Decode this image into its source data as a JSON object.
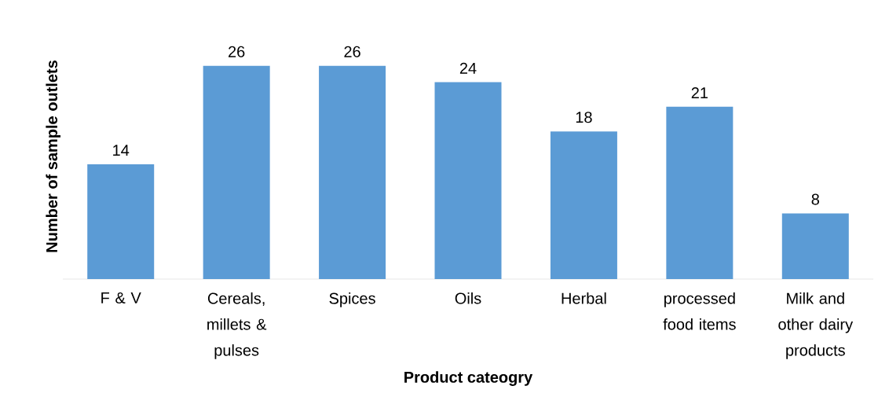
{
  "chart_data": {
    "type": "bar",
    "xlabel": "Product cateogry",
    "ylabel": "Number of sample outlets",
    "categories": [
      "F & V",
      "Cereals, millets & pulses",
      "Spices",
      "Oils",
      "Herbal",
      "processed food items",
      "Milk and other dairy products"
    ],
    "values": [
      14,
      26,
      26,
      24,
      18,
      21,
      8
    ],
    "color": "#5b9bd5",
    "data_labels": true
  }
}
